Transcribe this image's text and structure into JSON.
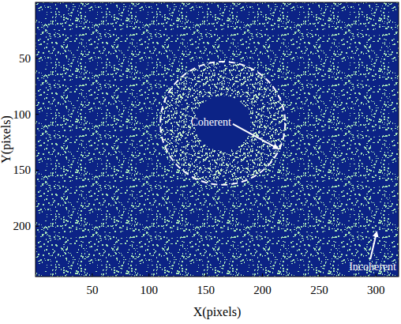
{
  "chart_data": {
    "type": "image",
    "x_label": "X(pixels)",
    "y_label": "Y(pixels)",
    "xlim": [
      0,
      320
    ],
    "ylim": [
      0,
      245
    ],
    "xticks": [
      50,
      100,
      150,
      200,
      250,
      300
    ],
    "yticks": [
      50,
      100,
      150,
      200
    ],
    "color": "#0c2386",
    "circle": {
      "cx": 165,
      "cy": 108,
      "r": 55
    },
    "annotations": [
      "Coherent",
      "Incoherent"
    ]
  }
}
